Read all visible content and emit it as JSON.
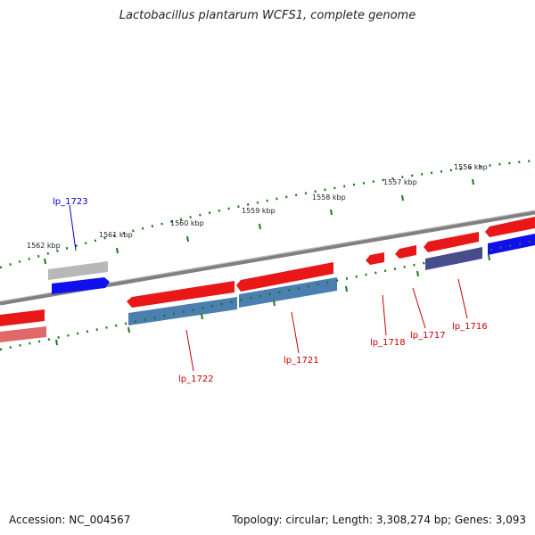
{
  "title": "Lactobacillus plantarum WCFS1, complete genome",
  "footer": {
    "accession": "Accession: NC_004567",
    "topology": "Topology: circular; Length: 3,308,274 bp; Genes: 3,093"
  },
  "ruler": [
    {
      "label": "1562 kbp"
    },
    {
      "label": "1561 kbp"
    },
    {
      "label": "1560 kbp"
    },
    {
      "label": "1559 kbp"
    },
    {
      "label": "1558 kbp"
    },
    {
      "label": "1557 kbp"
    },
    {
      "label": "1556 kbp"
    }
  ],
  "gene_labels": [
    {
      "text": "lp_1723",
      "color": "#0000cc"
    },
    {
      "text": "lp_1722",
      "color": "#cc0000"
    },
    {
      "text": "lp_1721",
      "color": "#cc0000"
    },
    {
      "text": "lp_1718",
      "color": "#cc0000"
    },
    {
      "text": "lp_1717",
      "color": "#cc0000"
    },
    {
      "text": "lp_1716",
      "color": "#cc0000"
    }
  ],
  "colors": {
    "backbone": "#808080",
    "tick": "#1a7a1a",
    "gene_red": "#e81818",
    "gene_pink": "#e06868",
    "gene_steelblue": "#4a7fb0",
    "gene_blue": "#1010ee",
    "gene_grey": "#b8b8b8",
    "gene_slate": "#4a4a90"
  }
}
